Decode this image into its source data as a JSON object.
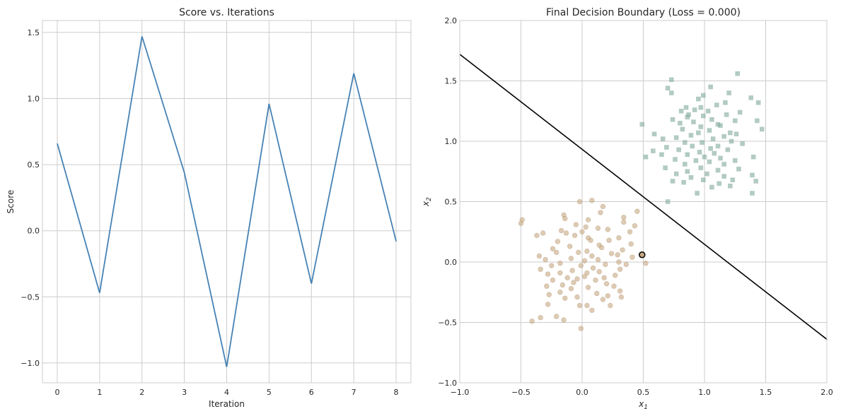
{
  "chart_data": [
    {
      "type": "line",
      "title": "Score vs. Iterations",
      "xlabel": "Iteration",
      "ylabel": "Score",
      "x": [
        0,
        1,
        2,
        3,
        4,
        5,
        6,
        7,
        8
      ],
      "series": [
        {
          "values": [
            0.66,
            -0.47,
            1.47,
            0.44,
            -1.03,
            0.96,
            -0.4,
            1.19,
            -0.08
          ],
          "color": "#4682b4"
        }
      ],
      "xlim": [
        -0.35,
        8.35
      ],
      "ylim": [
        -1.15,
        1.59
      ],
      "xticks": [
        "0",
        "1",
        "2",
        "3",
        "4",
        "5",
        "6",
        "7",
        "8"
      ],
      "yticks": [
        "−1.0",
        "−0.5",
        "0.0",
        "0.5",
        "1.0",
        "1.5"
      ],
      "grid": true
    },
    {
      "type": "scatter",
      "title": "Final Decision Boundary (Loss = 0.000)",
      "xlabel_main": "x",
      "xlabel_sub": "1",
      "ylabel_main": "x",
      "ylabel_sub": "2",
      "xlim": [
        -1.0,
        2.0
      ],
      "ylim": [
        -1.0,
        2.0
      ],
      "xticks": [
        "−1.0",
        "−0.5",
        "0.0",
        "0.5",
        "1.0",
        "1.5",
        "2.0"
      ],
      "yticks": [
        "−1.0",
        "−0.5",
        "0.0",
        "0.5",
        "1.0",
        "1.5",
        "2.0"
      ],
      "grid": true,
      "boundary_line": {
        "x": [
          -1.0,
          2.0
        ],
        "y": [
          1.72,
          -0.64
        ],
        "color": "#000000"
      },
      "highlight_point": {
        "x": 0.49,
        "y": 0.06
      },
      "class_0": {
        "marker": "circle",
        "color": "#c8a882",
        "center": [
          0.0,
          0.0
        ],
        "points": [
          [
            0.45,
            0.42
          ],
          [
            0.08,
            0.51
          ],
          [
            -0.02,
            0.5
          ],
          [
            0.17,
            0.46
          ],
          [
            0.15,
            0.41
          ],
          [
            -0.15,
            0.39
          ],
          [
            0.34,
            0.37
          ],
          [
            -0.14,
            0.36
          ],
          [
            -0.49,
            0.35
          ],
          [
            0.43,
            0.3
          ],
          [
            0.05,
            0.35
          ],
          [
            0.34,
            0.33
          ],
          [
            -0.5,
            0.32
          ],
          [
            -0.05,
            0.31
          ],
          [
            0.03,
            0.29
          ],
          [
            0.13,
            0.28
          ],
          [
            -0.17,
            0.26
          ],
          [
            0.21,
            0.27
          ],
          [
            0.0,
            0.25
          ],
          [
            0.39,
            0.25
          ],
          [
            -0.32,
            0.24
          ],
          [
            -0.13,
            0.24
          ],
          [
            -0.06,
            0.22
          ],
          [
            -0.37,
            0.22
          ],
          [
            0.3,
            0.2
          ],
          [
            0.05,
            0.2
          ],
          [
            0.07,
            0.18
          ],
          [
            0.22,
            0.18
          ],
          [
            -0.2,
            0.17
          ],
          [
            0.4,
            0.15
          ],
          [
            0.14,
            0.14
          ],
          [
            -0.1,
            0.13
          ],
          [
            0.16,
            0.12
          ],
          [
            -0.24,
            0.11
          ],
          [
            0.33,
            0.1
          ],
          [
            0.04,
            0.09
          ],
          [
            -0.03,
            0.08
          ],
          [
            0.24,
            0.07
          ],
          [
            -0.21,
            0.08
          ],
          [
            0.29,
            0.06
          ],
          [
            0.08,
            0.05
          ],
          [
            -0.35,
            0.05
          ],
          [
            0.41,
            0.04
          ],
          [
            -0.09,
            0.03
          ],
          [
            0.13,
            0.02
          ],
          [
            -0.3,
            0.02
          ],
          [
            0.3,
            0.0
          ],
          [
            0.02,
            0.01
          ],
          [
            -0.18,
            -0.01
          ],
          [
            0.19,
            -0.02
          ],
          [
            -0.25,
            -0.03
          ],
          [
            0.52,
            -0.01
          ],
          [
            0.36,
            -0.02
          ],
          [
            -0.01,
            -0.03
          ],
          [
            0.09,
            -0.05
          ],
          [
            -0.34,
            -0.06
          ],
          [
            0.31,
            -0.06
          ],
          [
            -0.08,
            -0.07
          ],
          [
            0.14,
            -0.08
          ],
          [
            -0.18,
            -0.09
          ],
          [
            0.04,
            -0.09
          ],
          [
            -0.28,
            -0.1
          ],
          [
            0.27,
            -0.11
          ],
          [
            0.02,
            -0.12
          ],
          [
            -0.12,
            -0.13
          ],
          [
            0.18,
            -0.13
          ],
          [
            -0.04,
            -0.14
          ],
          [
            -0.24,
            -0.15
          ],
          [
            0.11,
            -0.15
          ],
          [
            -0.07,
            -0.17
          ],
          [
            0.2,
            -0.18
          ],
          [
            -0.16,
            -0.19
          ],
          [
            0.26,
            -0.2
          ],
          [
            -0.29,
            -0.2
          ],
          [
            0.05,
            -0.21
          ],
          [
            -0.09,
            -0.22
          ],
          [
            0.31,
            -0.24
          ],
          [
            -0.18,
            -0.25
          ],
          [
            0.12,
            -0.26
          ],
          [
            -0.27,
            -0.27
          ],
          [
            0.21,
            -0.28
          ],
          [
            -0.04,
            -0.29
          ],
          [
            0.32,
            -0.29
          ],
          [
            -0.14,
            -0.3
          ],
          [
            0.17,
            -0.31
          ],
          [
            -0.28,
            -0.35
          ],
          [
            -0.02,
            -0.36
          ],
          [
            0.04,
            -0.36
          ],
          [
            -0.34,
            -0.46
          ],
          [
            -0.41,
            -0.49
          ],
          [
            -0.15,
            -0.48
          ],
          [
            -0.01,
            -0.55
          ],
          [
            -0.21,
            -0.45
          ],
          [
            0.08,
            -0.4
          ],
          [
            0.23,
            -0.36
          ]
        ]
      },
      "class_1": {
        "marker": "square",
        "color": "#7fa99b",
        "center": [
          1.0,
          1.0
        ],
        "points": [
          [
            0.73,
            1.51
          ],
          [
            1.27,
            1.56
          ],
          [
            0.7,
            1.44
          ],
          [
            1.05,
            1.45
          ],
          [
            0.73,
            1.4
          ],
          [
            1.2,
            1.4
          ],
          [
            1.38,
            1.36
          ],
          [
            0.99,
            1.38
          ],
          [
            0.95,
            1.35
          ],
          [
            1.44,
            1.32
          ],
          [
            0.85,
            1.28
          ],
          [
            1.17,
            1.32
          ],
          [
            0.87,
            1.22
          ],
          [
            1.1,
            1.3
          ],
          [
            0.97,
            1.28
          ],
          [
            0.81,
            1.25
          ],
          [
            1.03,
            1.25
          ],
          [
            0.92,
            1.26
          ],
          [
            1.29,
            1.24
          ],
          [
            1.18,
            1.22
          ],
          [
            0.86,
            1.2
          ],
          [
            0.99,
            1.21
          ],
          [
            1.43,
            1.17
          ],
          [
            1.06,
            1.18
          ],
          [
            0.74,
            1.18
          ],
          [
            1.25,
            1.17
          ],
          [
            0.91,
            1.16
          ],
          [
            1.11,
            1.14
          ],
          [
            0.8,
            1.15
          ],
          [
            0.49,
            1.14
          ],
          [
            1.13,
            1.13
          ],
          [
            0.97,
            1.12
          ],
          [
            0.82,
            1.1
          ],
          [
            1.47,
            1.1
          ],
          [
            1.04,
            1.09
          ],
          [
            1.21,
            1.07
          ],
          [
            0.95,
            1.07
          ],
          [
            0.59,
            1.06
          ],
          [
            1.26,
            1.06
          ],
          [
            0.89,
            1.05
          ],
          [
            1.16,
            1.04
          ],
          [
            0.77,
            1.03
          ],
          [
            1.07,
            1.02
          ],
          [
            0.66,
            1.02
          ],
          [
            1.22,
            1.0
          ],
          [
            0.84,
            0.99
          ],
          [
            0.98,
            0.99
          ],
          [
            1.31,
            0.98
          ],
          [
            1.11,
            0.96
          ],
          [
            0.9,
            0.96
          ],
          [
            0.69,
            0.95
          ],
          [
            1.05,
            0.94
          ],
          [
            0.79,
            0.93
          ],
          [
            1.19,
            0.93
          ],
          [
            0.96,
            0.91
          ],
          [
            0.65,
            0.89
          ],
          [
            1.08,
            0.9
          ],
          [
            0.86,
            0.89
          ],
          [
            1.4,
            0.87
          ],
          [
            1.0,
            0.87
          ],
          [
            0.52,
            0.87
          ],
          [
            1.13,
            0.86
          ],
          [
            0.76,
            0.85
          ],
          [
            1.25,
            0.84
          ],
          [
            0.93,
            0.84
          ],
          [
            1.04,
            0.83
          ],
          [
            0.84,
            0.81
          ],
          [
            1.16,
            0.81
          ],
          [
            0.68,
            0.78
          ],
          [
            0.97,
            0.78
          ],
          [
            1.28,
            0.77
          ],
          [
            0.86,
            0.75
          ],
          [
            1.11,
            0.76
          ],
          [
            0.77,
            0.73
          ],
          [
            1.02,
            0.73
          ],
          [
            1.16,
            0.71
          ],
          [
            0.89,
            0.7
          ],
          [
            1.39,
            0.72
          ],
          [
            0.74,
            0.67
          ],
          [
            0.99,
            0.68
          ],
          [
            1.23,
            0.68
          ],
          [
            0.83,
            0.66
          ],
          [
            1.12,
            0.65
          ],
          [
            1.42,
            0.67
          ],
          [
            0.94,
            0.57
          ],
          [
            1.39,
            0.57
          ],
          [
            0.7,
            0.5
          ],
          [
            1.06,
            0.62
          ],
          [
            1.21,
            0.63
          ],
          [
            0.58,
            0.92
          ]
        ]
      }
    }
  ]
}
